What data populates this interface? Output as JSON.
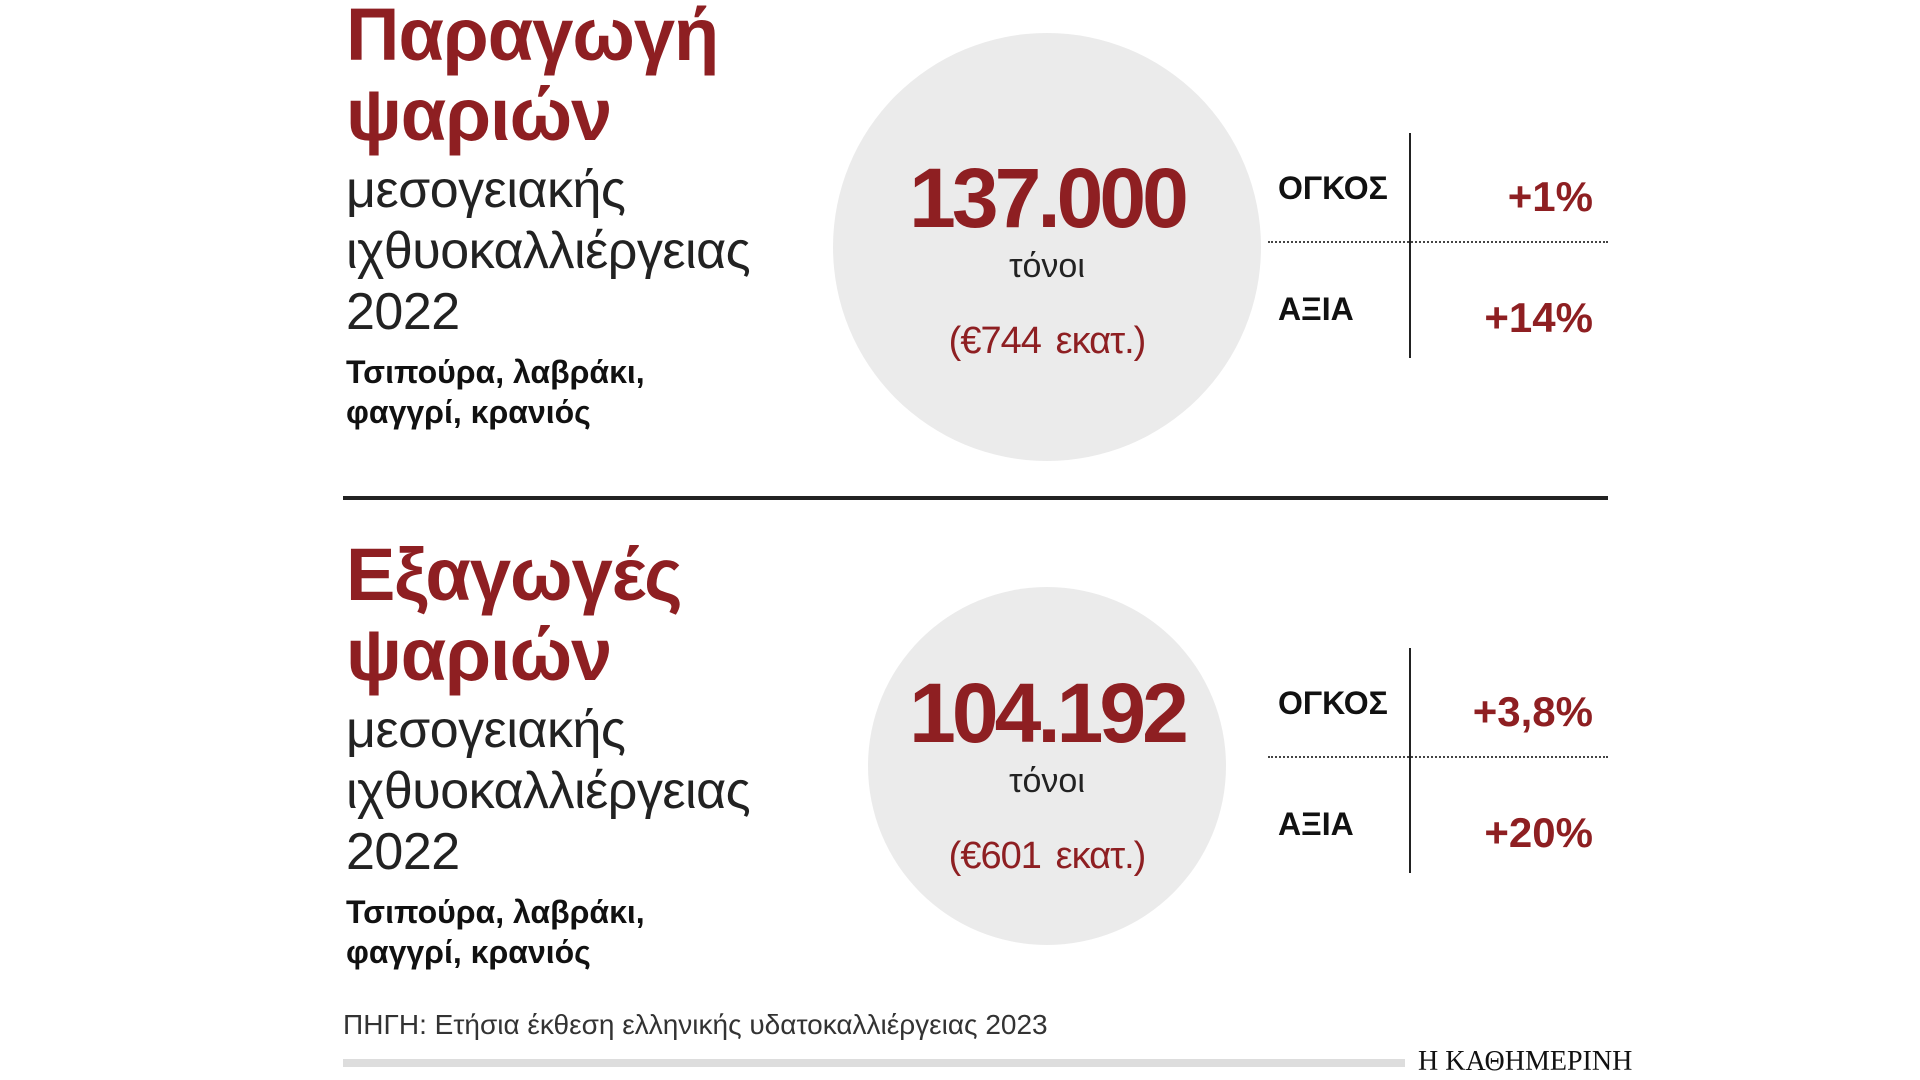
{
  "sections": [
    {
      "title": [
        "Παραγωγή",
        "ψαριών"
      ],
      "subtitle": [
        "μεσογειακής",
        "ιχθυοκαλλιέργειας",
        "2022"
      ],
      "detail": [
        "Τσιπούρα, λαβράκι,",
        "φαγγρί, κρανιός"
      ],
      "circle": {
        "number": "137.000",
        "unit": "τόνοι",
        "amount": "(€744",
        "amount_unit": "εκατ.)"
      },
      "stats": [
        {
          "label": "ΟΓΚΟΣ",
          "value": "+1",
          "suffix": "%"
        },
        {
          "label": "ΑΞΙΑ",
          "value": "+14",
          "suffix": "%"
        }
      ]
    },
    {
      "title": [
        "Εξαγωγές",
        "ψαριών"
      ],
      "subtitle": [
        "μεσογειακής",
        "ιχθυοκαλλιέργειας",
        "2022"
      ],
      "detail": [
        "Τσιπούρα, λαβράκι,",
        "φαγγρί, κρανιός"
      ],
      "circle": {
        "number": "104.192",
        "unit": "τόνοι",
        "amount": "(€601",
        "amount_unit": "εκατ.)"
      },
      "stats": [
        {
          "label": "ΟΓΚΟΣ",
          "value": "+3,8",
          "suffix": "%"
        },
        {
          "label": "ΑΞΙΑ",
          "value": "+20",
          "suffix": "%"
        }
      ]
    }
  ],
  "source": "ΠΗΓΗ: Ετήσια έκθεση ελληνικής υδατοκαλλιέργειας 2023",
  "brand": "Η ΚΑΘΗΜΕΡΙΝΗ"
}
